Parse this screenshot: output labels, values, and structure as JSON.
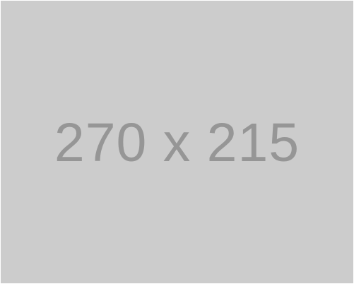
{
  "placeholder": {
    "label": "270 x 215",
    "background_color": "#cccccc",
    "text_color": "#969696"
  }
}
